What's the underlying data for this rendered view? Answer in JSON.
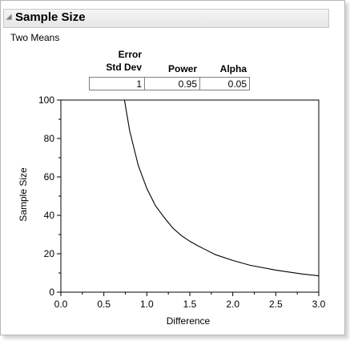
{
  "panel": {
    "title": "Sample Size",
    "subtitle": "Two Means"
  },
  "table": {
    "headers": {
      "error_line1": "Error",
      "error_line2": "Std Dev",
      "power": "Power",
      "alpha": "Alpha"
    },
    "values": {
      "error_std_dev": "1",
      "power": "0.95",
      "alpha": "0.05"
    }
  },
  "chart_data": {
    "type": "line",
    "title": "",
    "xlabel": "Difference",
    "ylabel": "Sample Size",
    "xlim": [
      0.0,
      3.0
    ],
    "ylim": [
      0,
      100
    ],
    "xticks": [
      "0.0",
      "0.5",
      "1.0",
      "1.5",
      "2.0",
      "2.5",
      "3.0"
    ],
    "yticks": [
      "0",
      "20",
      "40",
      "60",
      "80",
      "100"
    ],
    "grid": false,
    "series": [
      {
        "x": [
          0.74,
          0.8,
          0.9,
          1.0,
          1.1,
          1.2,
          1.3,
          1.4,
          1.5,
          1.6,
          1.8,
          2.0,
          2.2,
          2.5,
          2.8,
          3.0
        ],
        "y": [
          100,
          84,
          66,
          54,
          45,
          39,
          33.5,
          29.5,
          26.5,
          24,
          19.5,
          16.5,
          14,
          11.5,
          9.5,
          8.5
        ]
      }
    ],
    "colors": {
      "line": "#000000",
      "axis": "#000000"
    }
  }
}
